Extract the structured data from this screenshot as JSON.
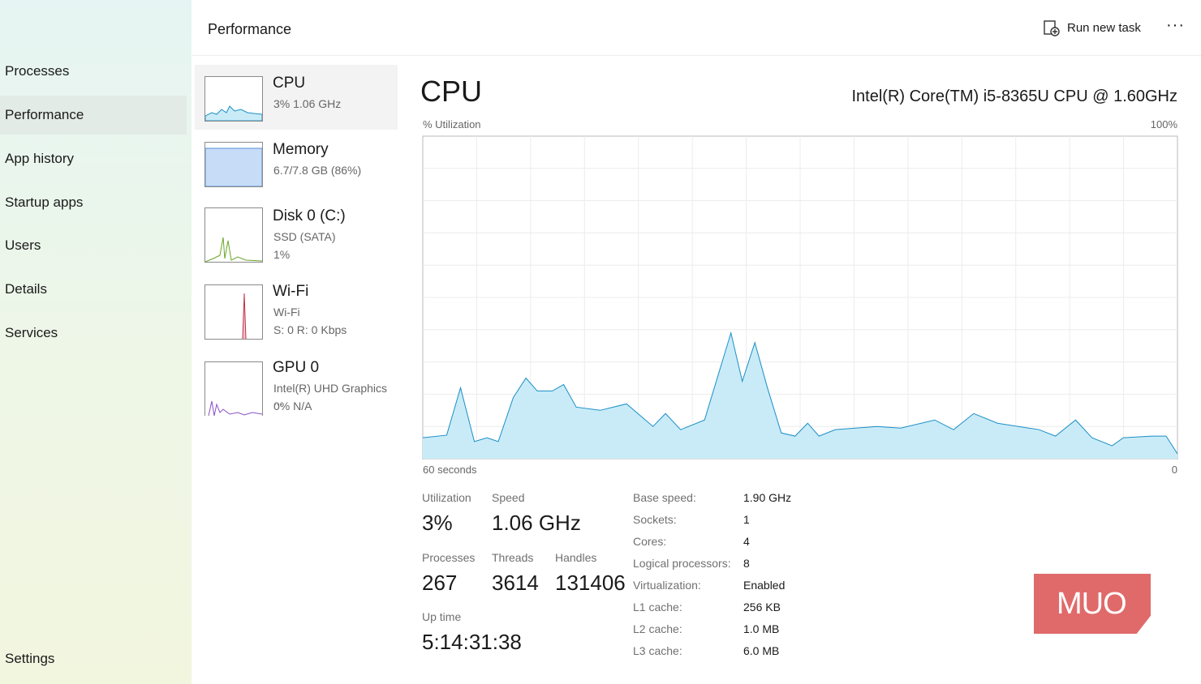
{
  "header": {
    "title": "Performance",
    "run_new_task": "Run new task"
  },
  "nav": {
    "items": [
      "Processes",
      "Performance",
      "App history",
      "Startup apps",
      "Users",
      "Details",
      "Services"
    ],
    "settings": "Settings"
  },
  "devices": [
    {
      "name": "CPU",
      "lines": [
        "3%  1.06 GHz"
      ]
    },
    {
      "name": "Memory",
      "lines": [
        "6.7/7.8 GB (86%)"
      ]
    },
    {
      "name": "Disk 0 (C:)",
      "lines": [
        "SSD (SATA)",
        "1%"
      ]
    },
    {
      "name": "Wi-Fi",
      "lines": [
        "Wi-Fi",
        "S: 0 R: 0 Kbps"
      ]
    },
    {
      "name": "GPU 0",
      "lines": [
        "Intel(R) UHD Graphics ...",
        "0% N/A"
      ]
    }
  ],
  "detail": {
    "title": "CPU",
    "model": "Intel(R) Core(TM) i5-8365U CPU @ 1.60GHz",
    "stats": [
      {
        "label": "Utilization",
        "value": "3%"
      },
      {
        "label": "Speed",
        "value": "1.06 GHz"
      },
      {
        "label": "Processes",
        "value": "267"
      },
      {
        "label": "Threads",
        "value": "3614"
      },
      {
        "label": "Handles",
        "value": "131406"
      },
      {
        "label": "Up time",
        "value": "5:14:31:38"
      }
    ],
    "specs": [
      {
        "label": "Base speed:",
        "value": "1.90 GHz"
      },
      {
        "label": "Sockets:",
        "value": "1"
      },
      {
        "label": "Cores:",
        "value": "4"
      },
      {
        "label": "Logical processors:",
        "value": "8"
      },
      {
        "label": "Virtualization:",
        "value": "Enabled"
      },
      {
        "label": "L1 cache:",
        "value": "256 KB"
      },
      {
        "label": "L2 cache:",
        "value": "1.0 MB"
      },
      {
        "label": "L3 cache:",
        "value": "6.0 MB"
      }
    ]
  },
  "chart_data": {
    "type": "area",
    "y_label": "% Utilization",
    "color": "#1b8fc6",
    "fill": "#c9ebf7",
    "grid": true,
    "x": [
      60,
      58.1,
      57,
      55.9,
      54.9,
      54,
      52.8,
      51.8,
      50.9,
      49.7,
      48.8,
      47.8,
      45.9,
      43.8,
      41.7,
      40.7,
      39.5,
      37.6,
      35.5,
      34.6,
      33.6,
      32.6,
      31.5,
      30.4,
      29.4,
      28.5,
      27.2,
      23.9,
      22,
      19.3,
      17.8,
      16.2,
      14.3,
      11,
      9.7,
      8.1,
      6.8,
      5.2,
      4.3,
      2,
      0.9,
      0
    ],
    "values": [
      6.5,
      7.3,
      22,
      5.3,
      6.5,
      5.3,
      19,
      25,
      21,
      21,
      23,
      16,
      15,
      17,
      10,
      14,
      9,
      12,
      39,
      24,
      36,
      22,
      8,
      7,
      11,
      7,
      9,
      10,
      9.5,
      12,
      9,
      14,
      11,
      9,
      7,
      12,
      6.5,
      4,
      6.5,
      7,
      7,
      1.5
    ],
    "xlim": [
      60,
      0
    ],
    "xticks": [
      {
        "value": 60,
        "label": "60 seconds"
      },
      0
    ],
    "ylim": [
      0,
      100
    ],
    "yticks": [
      {
        "value": 100,
        "label": "100%"
      }
    ]
  },
  "watermark": "MUO"
}
